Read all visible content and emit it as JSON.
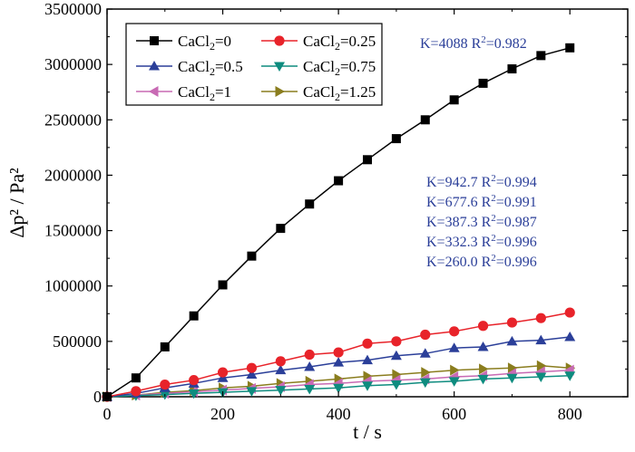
{
  "chart_data": {
    "type": "line",
    "xlabel": "t / s",
    "ylabel": "Δp² / Pa²",
    "xlim": [
      0,
      900
    ],
    "ylim": [
      0,
      3500000
    ],
    "x_ticks": [
      0,
      200,
      400,
      600,
      800
    ],
    "y_ticks": [
      0,
      500000,
      1000000,
      1500000,
      2000000,
      2500000,
      3000000,
      3500000
    ],
    "x_tick_labels": [
      "0",
      "200",
      "400",
      "600",
      "800"
    ],
    "y_tick_labels": [
      "0",
      "500000",
      "1000000",
      "1500000",
      "2000000",
      "2500000",
      "3000000",
      "3500000"
    ],
    "grid": false,
    "legend_position": "top-left",
    "x": [
      0,
      50,
      100,
      150,
      200,
      250,
      300,
      350,
      400,
      450,
      500,
      550,
      600,
      650,
      700,
      750,
      800
    ],
    "series": [
      {
        "name": "CaCl2=0",
        "name_main": "CaCl",
        "name_sub": "2",
        "name_rest": "=0",
        "marker": "square",
        "color": "#000000",
        "values": [
          0,
          170000,
          450000,
          730000,
          1010000,
          1270000,
          1520000,
          1740000,
          1950000,
          2140000,
          2330000,
          2500000,
          2680000,
          2830000,
          2960000,
          3080000,
          3150000
        ]
      },
      {
        "name": "CaCl2=0.25",
        "name_main": "CaCl",
        "name_sub": "2",
        "name_rest": "=0.25",
        "marker": "circle",
        "color": "#e8232a",
        "values": [
          0,
          50000,
          110000,
          150000,
          220000,
          260000,
          320000,
          380000,
          400000,
          480000,
          500000,
          560000,
          590000,
          640000,
          670000,
          710000,
          760000
        ]
      },
      {
        "name": "CaCl2=0.5",
        "name_main": "CaCl",
        "name_sub": "2",
        "name_rest": "=0.5",
        "marker": "triangle-up",
        "color": "#2b3f99",
        "values": [
          0,
          30000,
          80000,
          120000,
          170000,
          200000,
          240000,
          270000,
          310000,
          330000,
          370000,
          390000,
          440000,
          450000,
          500000,
          510000,
          540000
        ]
      },
      {
        "name": "CaCl2=0.75",
        "name_main": "CaCl",
        "name_sub": "2",
        "name_rest": "=0.75",
        "marker": "triangle-down",
        "color": "#0e8c7f",
        "values": [
          0,
          10000,
          20000,
          30000,
          40000,
          50000,
          60000,
          70000,
          80000,
          100000,
          110000,
          130000,
          140000,
          160000,
          170000,
          180000,
          190000
        ]
      },
      {
        "name": "CaCl2=1",
        "name_main": "CaCl",
        "name_sub": "2",
        "name_rest": "=1",
        "marker": "triangle-left",
        "color": "#c86ab4",
        "values": [
          0,
          15000,
          30000,
          45000,
          60000,
          75000,
          90000,
          110000,
          120000,
          140000,
          150000,
          160000,
          180000,
          190000,
          210000,
          225000,
          240000
        ]
      },
      {
        "name": "CaCl2=1.25",
        "name_main": "CaCl",
        "name_sub": "2",
        "name_rest": "=1.25",
        "marker": "triangle-right",
        "color": "#8a7d1e",
        "values": [
          0,
          15000,
          40000,
          55000,
          80000,
          95000,
          120000,
          140000,
          160000,
          185000,
          200000,
          220000,
          240000,
          250000,
          260000,
          280000,
          260000
        ]
      }
    ],
    "annotations": [
      {
        "k": "K=4088",
        "r": "R",
        "sup": "2",
        "val": "=0.982"
      },
      {
        "k": "K=942.7",
        "r": "R",
        "sup": "2",
        "val": "=0.994"
      },
      {
        "k": "K=677.6",
        "r": "R",
        "sup": "2",
        "val": "=0.991"
      },
      {
        "k": "K=387.3",
        "r": "R",
        "sup": "2",
        "val": "=0.987"
      },
      {
        "k": "K=332.3",
        "r": "R",
        "sup": "2",
        "val": "=0.996"
      },
      {
        "k": "K=260.0",
        "r": "R",
        "sup": "2",
        "val": "=0.996"
      }
    ],
    "annotation_color": "#2b3f99"
  }
}
